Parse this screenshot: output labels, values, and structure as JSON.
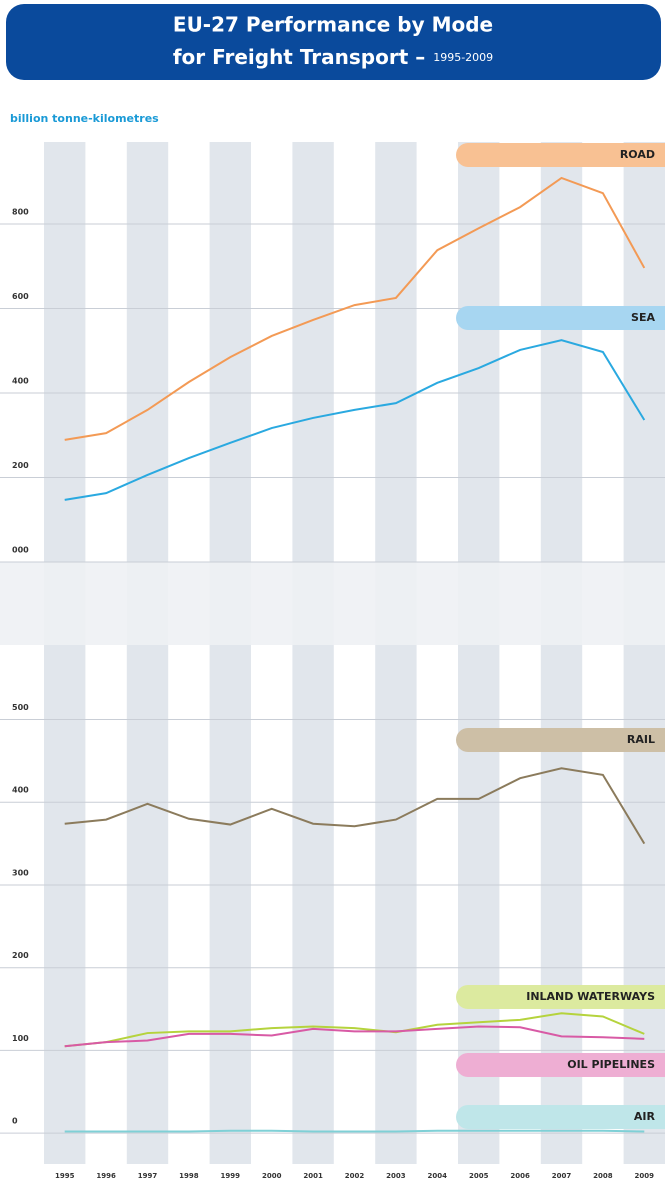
{
  "chart_data": [
    {
      "type": "line",
      "title": "EU-27 Performance by Mode",
      "subtitle": "for Freight Transport –",
      "period": "1995-2009",
      "y_label": "billion tonne-kilometres",
      "x": [
        "1995",
        "1996",
        "1997",
        "1998",
        "1999",
        "2000",
        "2001",
        "2002",
        "2003",
        "2004",
        "2005",
        "2006",
        "2007",
        "2008",
        "2009"
      ],
      "ylim": [
        0,
        1000
      ],
      "yticks": [
        {
          "value": 0,
          "label": "000"
        },
        200,
        400,
        600,
        800
      ],
      "series": [
        {
          "name": "ROAD",
          "color": "#f39a55",
          "label_color": "#f8c193",
          "values": [
            289,
            305,
            360,
            426,
            485,
            535,
            573,
            608,
            625,
            738,
            790,
            840,
            909,
            873,
            696
          ]
        },
        {
          "name": "SEA",
          "color": "#2aa9e0",
          "label_color": "#a7d6f1",
          "values": [
            147,
            163,
            206,
            246,
            282,
            317,
            341,
            360,
            376,
            424,
            459,
            502,
            525,
            497,
            336
          ]
        }
      ]
    },
    {
      "type": "line",
      "x": [
        "1995",
        "1996",
        "1997",
        "1998",
        "1999",
        "2000",
        "2001",
        "2002",
        "2003",
        "2004",
        "2005",
        "2006",
        "2007",
        "2008",
        "2009"
      ],
      "ylim": [
        -30,
        590
      ],
      "yticks": [
        0,
        100,
        200,
        300,
        400,
        500
      ],
      "series": [
        {
          "name": "RAIL",
          "color": "#8b7b5c",
          "label_color": "#cdbfa6",
          "values": [
            374,
            379,
            398,
            380,
            373,
            392,
            374,
            371,
            379,
            404,
            404,
            429,
            441,
            433,
            350
          ]
        },
        {
          "name": "INLAND WATERWAYS",
          "color": "#b5d33d",
          "label_color": "#dcea9f",
          "values": [
            105,
            110,
            121,
            123,
            123,
            127,
            129,
            127,
            122,
            131,
            134,
            137,
            145,
            141,
            120
          ]
        },
        {
          "name": "OIL PIPELINES",
          "color": "#d85aa5",
          "label_color": "#eeaed3",
          "values": [
            105,
            110,
            112,
            120,
            120,
            118,
            126,
            123,
            123,
            126,
            129,
            128,
            117,
            116,
            114
          ]
        },
        {
          "name": "AIR",
          "color": "#7fd0d6",
          "label_color": "#bfe6e9",
          "values": [
            2,
            2,
            2,
            2,
            3,
            3,
            2,
            2,
            2,
            3,
            3,
            3,
            3,
            3,
            2
          ]
        }
      ]
    }
  ]
}
